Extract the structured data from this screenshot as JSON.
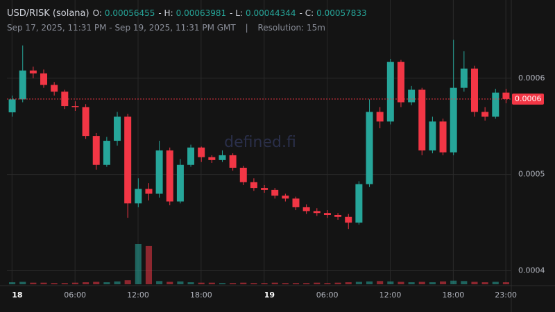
{
  "chart_data": {
    "type": "candlestick",
    "title": "USD/RISK (solana)",
    "ohlc_labels": [
      "O:",
      "- H:",
      "- L:",
      "- C:"
    ],
    "ohlc_values": [
      0.00056455,
      0.00063981,
      0.00044344,
      0.00057833
    ],
    "subtitle": "Sep 17, 2025, 11:31 PM - Sep 19, 2025, 11:31 PM GMT",
    "separator": "|",
    "resolution": "Resolution: 15m",
    "watermark": "defined.fi",
    "last_label": "0.0006",
    "up_color": "#26a69a",
    "down_color": "#f23645",
    "grid": true,
    "xlim": [
      0,
      48
    ],
    "xticks": [
      {
        "value": 0.48,
        "label": "18"
      },
      {
        "value": 6.48,
        "label": "06:00"
      },
      {
        "value": 12.48,
        "label": "12:00"
      },
      {
        "value": 18.48,
        "label": "18:00"
      },
      {
        "value": 24.48,
        "label": "19"
      },
      {
        "value": 30.48,
        "label": "06:00"
      },
      {
        "value": 36.48,
        "label": "12:00"
      },
      {
        "value": 42.48,
        "label": "18:00"
      },
      {
        "value": 47.48,
        "label": "23:00"
      }
    ],
    "ylim": [
      0.000386,
      0.000674
    ],
    "yticks": [
      0.0004,
      0.0005,
      0.0006
    ],
    "open": [
      0.00056455,
      0.000578,
      0.000608,
      0.000605,
      0.000593,
      0.000586,
      0.000571,
      0.00057,
      0.00054,
      0.00051,
      0.000535,
      0.00056,
      0.00047,
      0.000485,
      0.00048,
      0.000525,
      0.000472,
      0.00051,
      0.000528,
      0.000518,
      0.000515,
      0.00052,
      0.000507,
      0.000492,
      0.000486,
      0.000484,
      0.000478,
      0.000475,
      0.000466,
      0.000462,
      0.00046,
      0.000458,
      0.000456,
      0.00045,
      0.00049,
      0.000565,
      0.000555,
      0.000617,
      0.000575,
      0.000588,
      0.000525,
      0.000555,
      0.000523,
      0.00059,
      0.00061,
      0.000565,
      0.00056,
      0.000585
    ],
    "high": [
      0.000582,
      0.000634,
      0.000612,
      0.000609,
      0.000596,
      0.000588,
      0.000576,
      0.000573,
      0.000543,
      0.000539,
      0.000565,
      0.000563,
      0.000496,
      0.000491,
      0.000535,
      0.000528,
      0.000516,
      0.000531,
      0.000529,
      0.00052,
      0.000525,
      0.000522,
      0.000509,
      0.000496,
      0.000489,
      0.000486,
      0.00048,
      0.000477,
      0.000469,
      0.000465,
      0.000463,
      0.00046,
      0.000459,
      0.000493,
      0.000578,
      0.00057,
      0.00062,
      0.000619,
      0.000592,
      0.00059,
      0.00056,
      0.000558,
      0.00063981,
      0.000628,
      0.000613,
      0.00057,
      0.000589,
      0.000589
    ],
    "low": [
      0.00056,
      0.000575,
      0.0006,
      0.00059,
      0.000582,
      0.000568,
      0.000566,
      0.000537,
      0.000505,
      0.000508,
      0.00053,
      0.000455,
      0.000466,
      0.000473,
      0.000476,
      0.000468,
      0.00047,
      0.000508,
      0.000513,
      0.000512,
      0.000513,
      0.000504,
      0.000489,
      0.000483,
      0.000481,
      0.000475,
      0.000472,
      0.000463,
      0.000459,
      0.000457,
      0.000455,
      0.000453,
      0.00044344,
      0.000448,
      0.000487,
      0.000548,
      0.000552,
      0.00057,
      0.000572,
      0.00052,
      0.000522,
      0.00052,
      0.00052,
      0.000586,
      0.00056,
      0.000556,
      0.000558,
      0.000574
    ],
    "close": [
      0.000578,
      0.000608,
      0.000605,
      0.000593,
      0.000586,
      0.000571,
      0.00057,
      0.00054,
      0.00051,
      0.000535,
      0.00056,
      0.00047,
      0.000485,
      0.00048,
      0.000525,
      0.000472,
      0.00051,
      0.000528,
      0.000518,
      0.000515,
      0.00052,
      0.000507,
      0.000492,
      0.000486,
      0.000484,
      0.000478,
      0.000475,
      0.000466,
      0.000462,
      0.00046,
      0.000458,
      0.000456,
      0.00045,
      0.00049,
      0.000565,
      0.000555,
      0.000617,
      0.000575,
      0.000588,
      0.000525,
      0.000555,
      0.000523,
      0.00059,
      0.00061,
      0.000565,
      0.00056,
      0.000585,
      0.00057833
    ],
    "volume": [
      5,
      6,
      4,
      4,
      3,
      3,
      4,
      5,
      6,
      5,
      7,
      10,
      100,
      95,
      8,
      6,
      7,
      5,
      4,
      4,
      3,
      3,
      4,
      3,
      3,
      4,
      3,
      3,
      3,
      4,
      3,
      4,
      5,
      6,
      7,
      8,
      7,
      6,
      5,
      6,
      5,
      7,
      9,
      8,
      6,
      5,
      6,
      5
    ]
  }
}
